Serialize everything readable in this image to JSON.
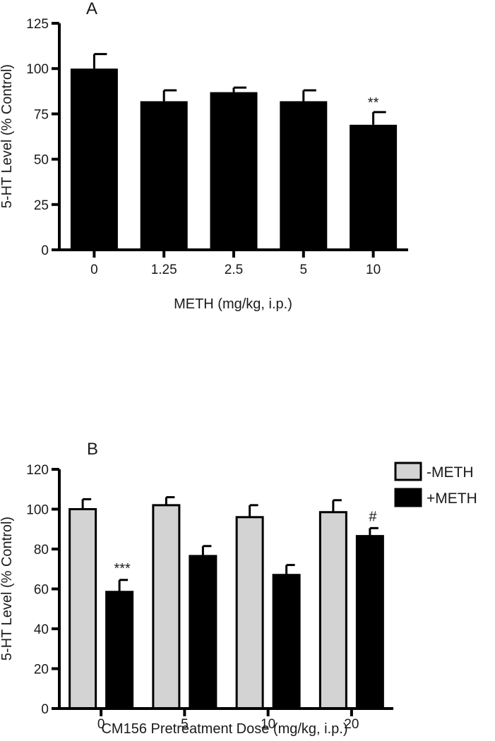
{
  "colors": {
    "background": "#ffffff",
    "axis": "#000000",
    "bar_dark": "#000000",
    "bar_light": "#d3d3d3"
  },
  "chart_data": [
    {
      "type": "bar",
      "panel_label": "A",
      "categories": [
        "0",
        "1.25",
        "2.5",
        "5",
        "10"
      ],
      "values": [
        100,
        82,
        87,
        82,
        69
      ],
      "errors": [
        8,
        6,
        2.5,
        6,
        7
      ],
      "annotations": [
        {
          "category": "10",
          "text": "**"
        }
      ],
      "xlabel": "METH (mg/kg, i.p.)",
      "ylabel": "5-HT Level (% Control)",
      "ylim": [
        0,
        125
      ],
      "yticks": [
        0,
        25,
        50,
        75,
        100,
        125
      ],
      "grid": false,
      "bar_color": "#000000"
    },
    {
      "type": "bar",
      "panel_label": "B",
      "categories": [
        "0",
        "5",
        "10",
        "20"
      ],
      "series": [
        {
          "name": "-METH",
          "color": "#d3d3d3",
          "values": [
            100,
            102,
            96,
            98.5
          ],
          "errors": [
            5,
            4,
            6,
            6
          ]
        },
        {
          "name": "+METH",
          "color": "#000000",
          "values": [
            58.5,
            76.5,
            67,
            86.5
          ],
          "errors": [
            6,
            5,
            5,
            4
          ]
        }
      ],
      "annotations": [
        {
          "category": "0",
          "series": "+METH",
          "text": "***"
        },
        {
          "category": "20",
          "series": "+METH",
          "text": "#"
        }
      ],
      "xlabel": "CM156 Pretreatment Dose (mg/kg, i.p.)",
      "ylabel": "5-HT Level (% Control)",
      "ylim": [
        0,
        120
      ],
      "yticks": [
        0,
        20,
        40,
        60,
        80,
        100,
        120
      ],
      "grid": false,
      "legend_position": "top-right"
    }
  ]
}
